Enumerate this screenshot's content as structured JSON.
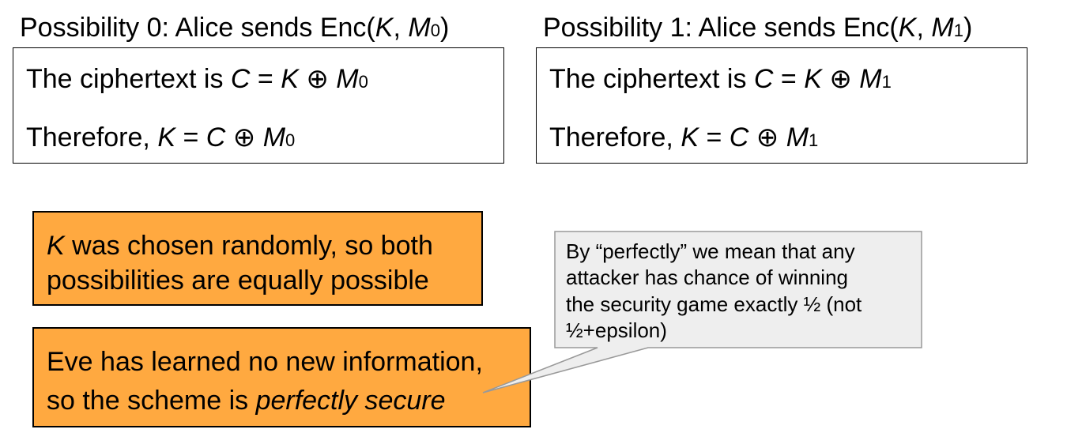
{
  "possibility0": {
    "heading_prefix": "Possibility 0: Alice sends Enc(",
    "heading_k": "K",
    "heading_sep": ", ",
    "heading_m": "M",
    "heading_sub": "0",
    "heading_suffix": ")",
    "line1_prefix": "The ciphertext is ",
    "line1_c": "C",
    "line1_eq": " = ",
    "line1_k": "K",
    "line1_xor": " ⊕ ",
    "line1_m": "M",
    "line1_sub": "0",
    "line2_prefix": "Therefore, ",
    "line2_k": "K",
    "line2_eq": " = ",
    "line2_c": "C",
    "line2_xor": " ⊕ ",
    "line2_m": "M",
    "line2_sub": "0"
  },
  "possibility1": {
    "heading_prefix": "Possibility 1: Alice sends Enc(",
    "heading_k": "K",
    "heading_sep": ", ",
    "heading_m": "M",
    "heading_sub": "1",
    "heading_suffix": ")",
    "line1_prefix": "The ciphertext is ",
    "line1_c": "C",
    "line1_eq": " = ",
    "line1_k": "K",
    "line1_xor": " ⊕ ",
    "line1_m": "M",
    "line1_sub": "1",
    "line2_prefix": "Therefore, ",
    "line2_k": "K",
    "line2_eq": " = ",
    "line2_c": "C",
    "line2_xor": " ⊕ ",
    "line2_m": "M",
    "line2_sub": "1"
  },
  "random_box": {
    "k": "K",
    "line1_rest": " was chosen randomly, so both",
    "line2": "possibilities are equally possible"
  },
  "conclusion_box": {
    "line1": "Eve has learned no new information,",
    "line2_prefix": "so the scheme is ",
    "line2_emphasis": "perfectly secure"
  },
  "callout": {
    "line1": "By “perfectly” we mean that any",
    "line2": "attacker has chance of winning",
    "line3": "the security game exactly ½ (not",
    "line4": "½+epsilon)"
  },
  "colors": {
    "orange_fill": "#ffa940",
    "callout_fill": "#eeeeee",
    "callout_border": "#999999"
  }
}
